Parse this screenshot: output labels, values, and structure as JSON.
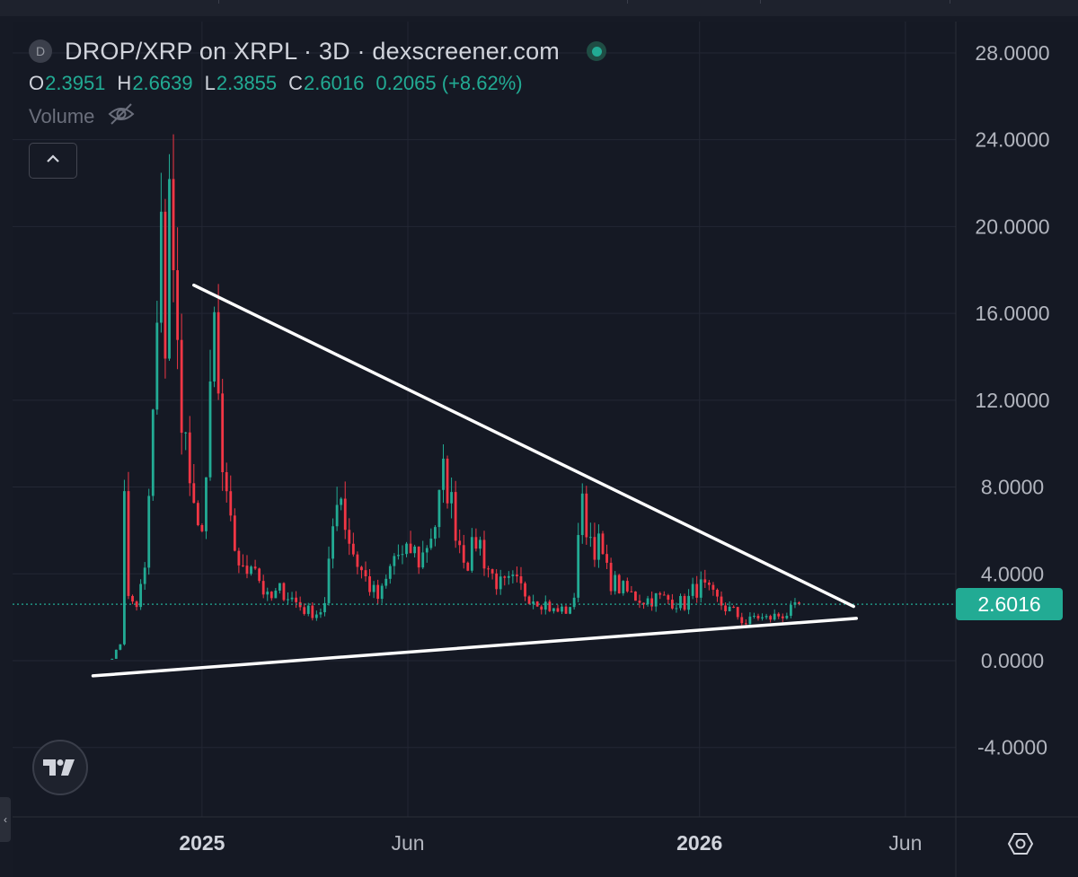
{
  "legend": {
    "symbol_badge": "D",
    "title": "DROP/XRP on XRPL · 3D · dexscreener.com",
    "ohlc": [
      {
        "key": "O",
        "value": "2.3951"
      },
      {
        "key": "H",
        "value": "2.6639"
      },
      {
        "key": "L",
        "value": "2.3855"
      },
      {
        "key": "C",
        "value": "2.6016"
      }
    ],
    "change": "0.2065 (+8.62%)",
    "volume_label": "Volume",
    "status_color": "#22ab94"
  },
  "current_price": "2.6016",
  "colors": {
    "up": "#22ab94",
    "down": "#f23645",
    "background": "#161a25",
    "grid": "#232734",
    "axis_text": "#b2b5be",
    "trendline": "#ffffff"
  },
  "icons": {
    "collapse": "chevron-up-icon",
    "volume_visibility": "eye-off-icon",
    "logo": "tradingview-logo-icon",
    "settings": "settings-icon"
  },
  "chart_data": {
    "type": "candlestick",
    "interval": "3D",
    "ylim": [
      -5.5,
      30
    ],
    "y_ticks": [
      "28.0000",
      "24.0000",
      "20.0000",
      "16.0000",
      "12.0000",
      "8.0000",
      "4.0000",
      "0.0000",
      "-4.0000"
    ],
    "x_ticks": [
      "2025",
      "Jun",
      "2026",
      "Jun"
    ],
    "x_range": [
      "2024-08-15",
      "2026-07-08"
    ],
    "x_tick_dates": [
      "2025-01-01",
      "2025-06-01",
      "2026-01-01",
      "2026-06-01"
    ],
    "last_price": 2.6016,
    "price_path": [
      [
        "2024-10-27",
        0.1
      ],
      [
        "2024-11-02",
        0.8
      ],
      [
        "2024-11-05",
        8.5
      ],
      [
        "2024-11-08",
        2.8
      ],
      [
        "2024-11-14",
        2.6
      ],
      [
        "2024-11-20",
        4.0
      ],
      [
        "2024-11-26",
        11.0
      ],
      [
        "2024-12-02",
        19.0
      ],
      [
        "2024-12-05",
        15.0
      ],
      [
        "2024-12-08",
        23.0
      ],
      [
        "2024-12-11",
        17.0
      ],
      [
        "2024-12-14",
        14.0
      ],
      [
        "2024-12-20",
        10.0
      ],
      [
        "2024-12-26",
        6.5
      ],
      [
        "2024-12-30",
        5.5
      ],
      [
        "2025-01-05",
        9.0
      ],
      [
        "2025-01-11",
        16.5
      ],
      [
        "2025-01-14",
        9.5
      ],
      [
        "2025-01-20",
        6.5
      ],
      [
        "2025-01-26",
        5.0
      ],
      [
        "2025-02-01",
        3.8
      ],
      [
        "2025-02-07",
        5.0
      ],
      [
        "2025-02-13",
        3.5
      ],
      [
        "2025-02-19",
        2.7
      ],
      [
        "2025-02-28",
        3.3
      ],
      [
        "2025-03-09",
        2.8
      ],
      [
        "2025-03-18",
        2.3
      ],
      [
        "2025-03-27",
        2.2
      ],
      [
        "2025-04-02",
        2.6
      ],
      [
        "2025-04-05",
        5.0
      ],
      [
        "2025-04-11",
        8.5
      ],
      [
        "2025-04-17",
        6.0
      ],
      [
        "2025-04-23",
        4.8
      ],
      [
        "2025-04-29",
        4.0
      ],
      [
        "2025-05-05",
        3.3
      ],
      [
        "2025-05-11",
        2.8
      ],
      [
        "2025-05-17",
        3.8
      ],
      [
        "2025-05-23",
        5.0
      ],
      [
        "2025-05-29",
        4.6
      ],
      [
        "2025-06-04",
        5.2
      ],
      [
        "2025-06-10",
        4.5
      ],
      [
        "2025-06-16",
        5.6
      ],
      [
        "2025-06-22",
        6.5
      ],
      [
        "2025-06-28",
        8.8
      ],
      [
        "2025-07-04",
        6.8
      ],
      [
        "2025-07-10",
        5.2
      ],
      [
        "2025-07-16",
        4.6
      ],
      [
        "2025-07-22",
        5.8
      ],
      [
        "2025-07-28",
        4.5
      ],
      [
        "2025-08-03",
        3.8
      ],
      [
        "2025-08-09",
        3.4
      ],
      [
        "2025-08-18",
        3.6
      ],
      [
        "2025-08-27",
        3.1
      ],
      [
        "2025-09-05",
        2.8
      ],
      [
        "2025-09-11",
        2.6
      ],
      [
        "2025-09-17",
        2.2
      ],
      [
        "2025-09-23",
        2.4
      ],
      [
        "2025-09-29",
        2.2
      ],
      [
        "2025-10-02",
        3.6
      ],
      [
        "2025-10-05",
        7.2
      ],
      [
        "2025-10-08",
        6.8
      ],
      [
        "2025-10-14",
        5.5
      ],
      [
        "2025-10-20",
        5.2
      ],
      [
        "2025-10-26",
        3.8
      ],
      [
        "2025-11-01",
        3.5
      ],
      [
        "2025-11-07",
        3.2
      ],
      [
        "2025-11-13",
        3.0
      ],
      [
        "2025-11-22",
        2.8
      ],
      [
        "2025-12-01",
        2.9
      ],
      [
        "2025-12-10",
        2.8
      ],
      [
        "2025-12-22",
        2.6
      ],
      [
        "2025-12-28",
        3.3
      ],
      [
        "2026-01-03",
        3.4
      ],
      [
        "2026-01-09",
        3.0
      ],
      [
        "2026-01-15",
        2.7
      ],
      [
        "2026-01-21",
        2.4
      ],
      [
        "2026-01-27",
        2.2
      ],
      [
        "2026-02-02",
        1.8
      ],
      [
        "2026-02-05",
        1.7
      ],
      [
        "2026-02-11",
        2.1
      ],
      [
        "2026-02-17",
        1.9
      ],
      [
        "2026-02-23",
        2.0
      ],
      [
        "2026-03-01",
        2.1
      ],
      [
        "2026-03-07",
        2.2
      ],
      [
        "2026-03-13",
        2.39
      ],
      [
        "2026-03-16",
        2.6
      ]
    ],
    "trendlines": [
      {
        "name": "descending resistance",
        "from": [
          "2024-12-26",
          17.3
        ],
        "to": [
          "2026-04-24",
          2.5
        ]
      },
      {
        "name": "ascending support",
        "from": [
          "2024-10-13",
          -0.7
        ],
        "to": [
          "2026-04-26",
          1.95
        ]
      }
    ]
  }
}
